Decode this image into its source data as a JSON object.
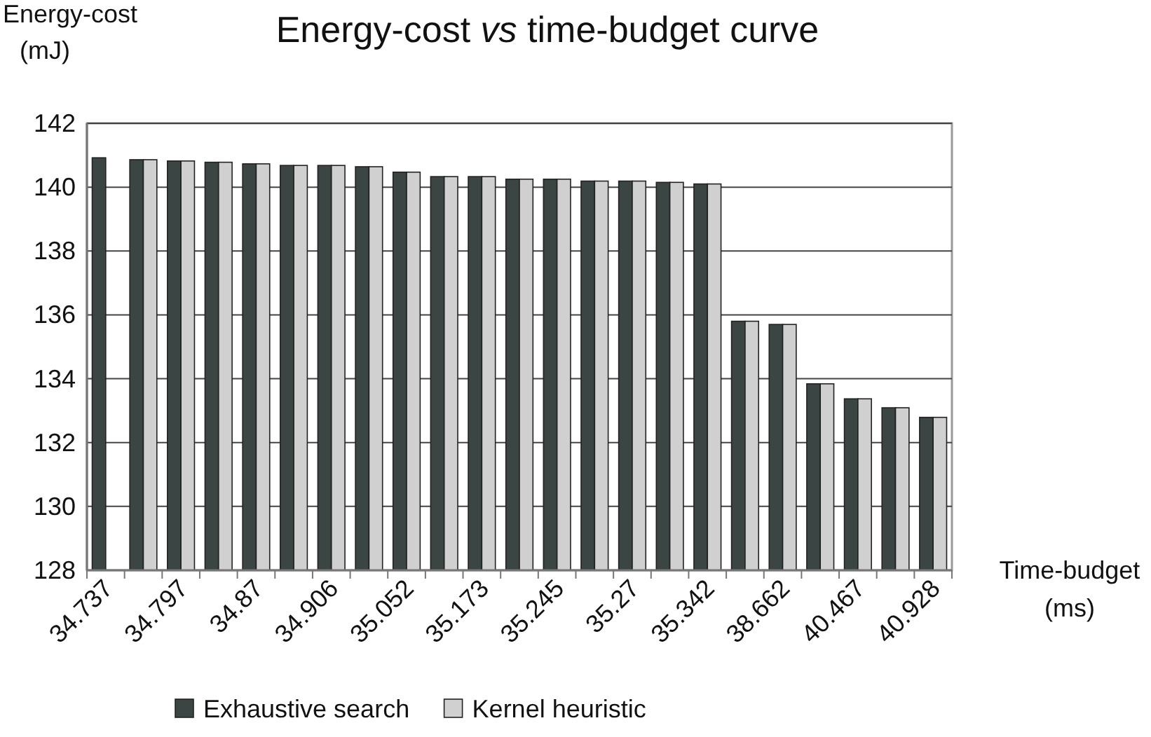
{
  "chart_data": {
    "type": "bar",
    "title": "Energy-cost vs time-budget curve",
    "xlabel": "Time-budget (ms)",
    "ylabel": "Energy-cost (mJ)",
    "categories": [
      "34.737",
      null,
      "34.797",
      null,
      "34.87",
      null,
      "34.906",
      null,
      "35.052",
      null,
      "35.173",
      null,
      "35.245",
      null,
      "35.27",
      null,
      "35.342",
      null,
      "38.662",
      null,
      "40.467",
      null,
      "40.928"
    ],
    "series": [
      {
        "name": "Exhaustive search",
        "color": "#3b4543",
        "values": [
          140.92,
          140.86,
          140.82,
          140.78,
          140.73,
          140.68,
          140.68,
          140.64,
          140.47,
          140.33,
          140.33,
          140.25,
          140.25,
          140.19,
          140.19,
          140.15,
          140.1,
          135.8,
          135.7,
          133.84,
          133.37,
          133.09,
          132.79
        ]
      },
      {
        "name": "Kernel heuristic",
        "color": "#d0d0d0",
        "values": [
          null,
          140.86,
          140.82,
          140.78,
          140.73,
          140.68,
          140.68,
          140.64,
          140.47,
          140.33,
          140.33,
          140.25,
          140.25,
          140.19,
          140.19,
          140.15,
          140.1,
          135.8,
          135.7,
          133.84,
          133.37,
          133.09,
          132.79
        ]
      }
    ],
    "ylim": [
      128,
      142
    ],
    "yticks": [
      128,
      130,
      132,
      134,
      136,
      138,
      140,
      142
    ],
    "grid": "y",
    "legend": "bottom"
  }
}
